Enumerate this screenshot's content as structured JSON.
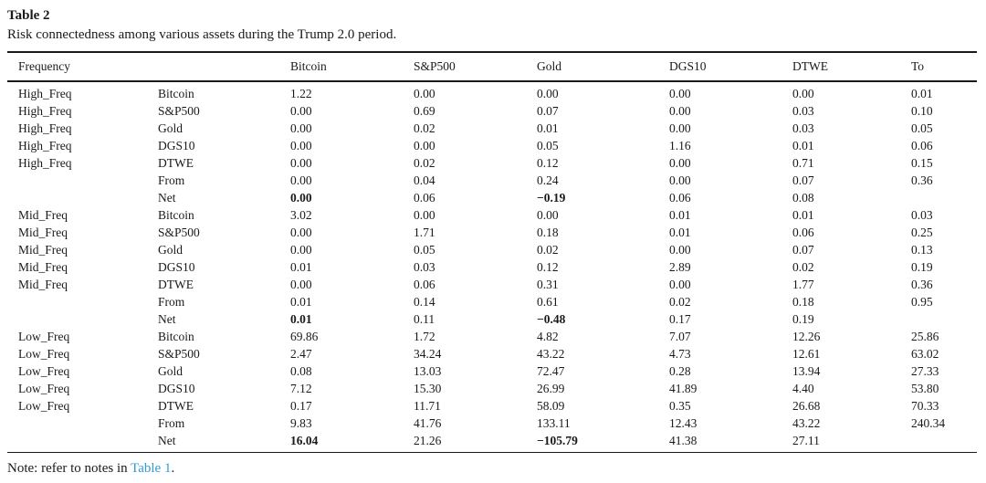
{
  "table": {
    "label": "Table 2",
    "caption": "Risk connectedness among various assets during the Trump 2.0 period.",
    "columns": [
      "Frequency",
      "",
      "Bitcoin",
      "S&P500",
      "Gold",
      "DGS10",
      "DTWE",
      "To"
    ],
    "rows": [
      {
        "freq": "High_Freq",
        "asset": "Bitcoin",
        "values": [
          "1.22",
          "0.00",
          "0.00",
          "0.00",
          "0.00",
          "0.01"
        ],
        "bold": []
      },
      {
        "freq": "High_Freq",
        "asset": "S&P500",
        "values": [
          "0.00",
          "0.69",
          "0.07",
          "0.00",
          "0.03",
          "0.10"
        ],
        "bold": []
      },
      {
        "freq": "High_Freq",
        "asset": "Gold",
        "values": [
          "0.00",
          "0.02",
          "0.01",
          "0.00",
          "0.03",
          "0.05"
        ],
        "bold": []
      },
      {
        "freq": "High_Freq",
        "asset": "DGS10",
        "values": [
          "0.00",
          "0.00",
          "0.05",
          "1.16",
          "0.01",
          "0.06"
        ],
        "bold": []
      },
      {
        "freq": "High_Freq",
        "asset": "DTWE",
        "values": [
          "0.00",
          "0.02",
          "0.12",
          "0.00",
          "0.71",
          "0.15"
        ],
        "bold": []
      },
      {
        "freq": "",
        "asset": "From",
        "values": [
          "0.00",
          "0.04",
          "0.24",
          "0.00",
          "0.07",
          "0.36"
        ],
        "bold": []
      },
      {
        "freq": "",
        "asset": "Net",
        "values": [
          "0.00",
          "0.06",
          "−0.19",
          "0.06",
          "0.08",
          ""
        ],
        "bold": [
          0,
          2
        ]
      },
      {
        "freq": "Mid_Freq",
        "asset": "Bitcoin",
        "values": [
          "3.02",
          "0.00",
          "0.00",
          "0.01",
          "0.01",
          "0.03"
        ],
        "bold": []
      },
      {
        "freq": "Mid_Freq",
        "asset": "S&P500",
        "values": [
          "0.00",
          "1.71",
          "0.18",
          "0.01",
          "0.06",
          "0.25"
        ],
        "bold": []
      },
      {
        "freq": "Mid_Freq",
        "asset": "Gold",
        "values": [
          "0.00",
          "0.05",
          "0.02",
          "0.00",
          "0.07",
          "0.13"
        ],
        "bold": []
      },
      {
        "freq": "Mid_Freq",
        "asset": "DGS10",
        "values": [
          "0.01",
          "0.03",
          "0.12",
          "2.89",
          "0.02",
          "0.19"
        ],
        "bold": []
      },
      {
        "freq": "Mid_Freq",
        "asset": "DTWE",
        "values": [
          "0.00",
          "0.06",
          "0.31",
          "0.00",
          "1.77",
          "0.36"
        ],
        "bold": []
      },
      {
        "freq": "",
        "asset": "From",
        "values": [
          "0.01",
          "0.14",
          "0.61",
          "0.02",
          "0.18",
          "0.95"
        ],
        "bold": []
      },
      {
        "freq": "",
        "asset": "Net",
        "values": [
          "0.01",
          "0.11",
          "−0.48",
          "0.17",
          "0.19",
          ""
        ],
        "bold": [
          0,
          2
        ]
      },
      {
        "freq": "Low_Freq",
        "asset": "Bitcoin",
        "values": [
          "69.86",
          "1.72",
          "4.82",
          "7.07",
          "12.26",
          "25.86"
        ],
        "bold": []
      },
      {
        "freq": "Low_Freq",
        "asset": "S&P500",
        "values": [
          "2.47",
          "34.24",
          "43.22",
          "4.73",
          "12.61",
          "63.02"
        ],
        "bold": []
      },
      {
        "freq": "Low_Freq",
        "asset": "Gold",
        "values": [
          "0.08",
          "13.03",
          "72.47",
          "0.28",
          "13.94",
          "27.33"
        ],
        "bold": []
      },
      {
        "freq": "Low_Freq",
        "asset": "DGS10",
        "values": [
          "7.12",
          "15.30",
          "26.99",
          "41.89",
          "4.40",
          "53.80"
        ],
        "bold": []
      },
      {
        "freq": "Low_Freq",
        "asset": "DTWE",
        "values": [
          "0.17",
          "11.71",
          "58.09",
          "0.35",
          "26.68",
          "70.33"
        ],
        "bold": []
      },
      {
        "freq": "",
        "asset": "From",
        "values": [
          "9.83",
          "41.76",
          "133.11",
          "12.43",
          "43.22",
          "240.34"
        ],
        "bold": []
      },
      {
        "freq": "",
        "asset": "Net",
        "values": [
          "16.04",
          "21.26",
          "−105.79",
          "41.38",
          "27.11",
          ""
        ],
        "bold": [
          0,
          2
        ]
      }
    ]
  },
  "note": {
    "prefix": "Note: refer to notes in ",
    "link_text": "Table 1",
    "suffix": "."
  },
  "colors": {
    "link": "#2e9bd5",
    "text": "#1a1a1a",
    "rule": "#1a1a1a"
  }
}
